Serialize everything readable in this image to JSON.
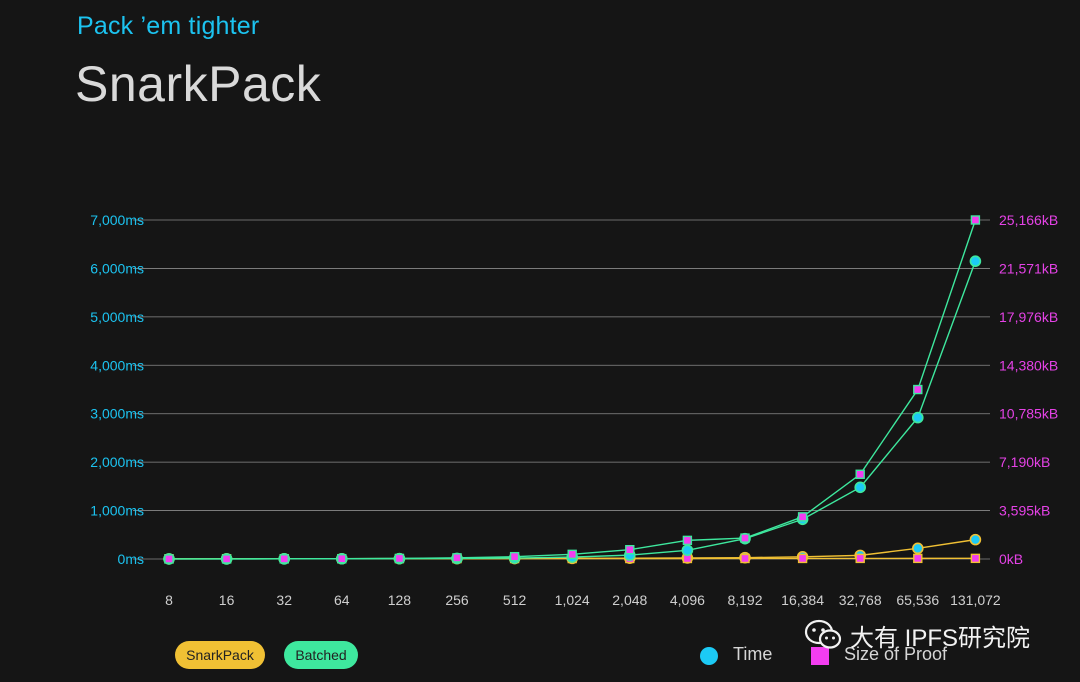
{
  "header": {
    "subtitle": "Pack ’em tighter",
    "title": "SnarkPack"
  },
  "legend": {
    "series": [
      "SnarkPack",
      "Batched"
    ],
    "markers": [
      "Time",
      "Size of Proof"
    ]
  },
  "watermark": {
    "text": "大有 IPFS研究院",
    "icon": "wechat-icon"
  },
  "colors": {
    "background": "#151515",
    "time_axis": "#1cc3f0",
    "size_axis": "#e542e6",
    "snarkpack": "#f0c034",
    "batched": "#3ee89e",
    "time_marker": "#1ccaf5",
    "size_marker": "#f33df0"
  },
  "chart_data": {
    "type": "line",
    "title": "SnarkPack",
    "subtitle": "Pack ’em tighter",
    "categories": [
      "8",
      "16",
      "32",
      "64",
      "128",
      "256",
      "512",
      "1,024",
      "2,048",
      "4,096",
      "8,192",
      "16,384",
      "32,768",
      "65,536",
      "131,072"
    ],
    "y_left": {
      "label": "Time",
      "range": [
        0,
        7000
      ],
      "ticks": [
        "0ms",
        "1,000ms",
        "2,000ms",
        "3,000ms",
        "4,000ms",
        "5,000ms",
        "6,000ms",
        "7,000ms"
      ]
    },
    "y_right": {
      "label": "Size of Proof",
      "range": [
        0,
        25166
      ],
      "ticks": [
        "0kB",
        "3,595kB",
        "7,190kB",
        "10,785kB",
        "14,380kB",
        "17,976kB",
        "21,571kB",
        "25,166kB"
      ]
    },
    "grid": true,
    "series": [
      {
        "name": "Batched",
        "metric": "Time",
        "axis": "left",
        "color": "#3ee89e",
        "values": [
          1,
          2,
          3,
          5,
          8,
          12,
          20,
          40,
          80,
          180,
          420,
          820,
          1480,
          2920,
          6150
        ]
      },
      {
        "name": "Batched",
        "metric": "Size of Proof",
        "axis": "right",
        "color": "#3ee89e",
        "values": [
          3,
          5,
          11,
          22,
          43,
          86,
          173,
          346,
          691,
          1383,
          1553,
          3130,
          6290,
          12580,
          25166
        ]
      },
      {
        "name": "SnarkPack",
        "metric": "Time",
        "axis": "left",
        "color": "#f0c034",
        "values": [
          2,
          3,
          4,
          5,
          6,
          8,
          10,
          13,
          17,
          22,
          28,
          45,
          75,
          220,
          400
        ]
      },
      {
        "name": "SnarkPack",
        "metric": "Size of Proof",
        "axis": "right",
        "color": "#f0c034",
        "values": [
          20,
          22,
          24,
          26,
          28,
          30,
          32,
          34,
          36,
          38,
          40,
          42,
          44,
          46,
          48
        ]
      }
    ]
  }
}
